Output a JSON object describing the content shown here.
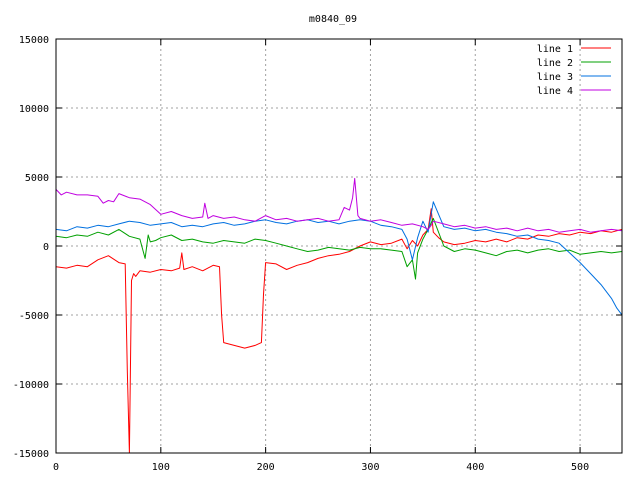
{
  "chart_data": {
    "type": "line",
    "title": "m0840_09",
    "xlabel": "",
    "ylabel": "",
    "xlim": [
      0,
      540
    ],
    "ylim": [
      -15000,
      15000
    ],
    "x_ticks": [
      0,
      100,
      200,
      300,
      400,
      500
    ],
    "y_ticks": [
      -15000,
      -10000,
      -5000,
      0,
      5000,
      10000,
      15000
    ],
    "grid": true,
    "legend_position": "top-right",
    "series": [
      {
        "name": "line 1",
        "color": "#ff0000",
        "x": [
          0,
          10,
          20,
          30,
          40,
          50,
          60,
          66,
          68,
          70,
          72,
          74,
          76,
          80,
          90,
          100,
          110,
          118,
          120,
          122,
          130,
          140,
          150,
          156,
          158,
          160,
          170,
          180,
          190,
          196,
          198,
          200,
          210,
          220,
          230,
          240,
          250,
          260,
          270,
          280,
          290,
          300,
          310,
          320,
          330,
          335,
          340,
          345,
          350,
          355,
          358,
          360,
          365,
          370,
          380,
          390,
          400,
          410,
          420,
          430,
          440,
          450,
          460,
          470,
          480,
          490,
          500,
          510,
          520,
          530,
          540
        ],
        "y": [
          -1500,
          -1600,
          -1400,
          -1500,
          -1000,
          -700,
          -1200,
          -1300,
          -9000,
          -15000,
          -2500,
          -2000,
          -2200,
          -1800,
          -1900,
          -1700,
          -1800,
          -1600,
          -500,
          -1700,
          -1500,
          -1800,
          -1400,
          -1500,
          -5000,
          -7000,
          -7200,
          -7400,
          -7200,
          -7000,
          -3500,
          -1200,
          -1300,
          -1700,
          -1400,
          -1200,
          -900,
          -700,
          -600,
          -400,
          0,
          300,
          100,
          200,
          500,
          -200,
          400,
          0,
          800,
          1200,
          2700,
          1000,
          600,
          300,
          100,
          200,
          400,
          300,
          500,
          300,
          600,
          500,
          800,
          700,
          900,
          800,
          1000,
          900,
          1100,
          1000,
          1200
        ]
      },
      {
        "name": "line 2",
        "color": "#00a000",
        "x": [
          0,
          10,
          20,
          30,
          40,
          50,
          60,
          70,
          80,
          85,
          88,
          90,
          95,
          100,
          110,
          120,
          130,
          140,
          150,
          160,
          170,
          180,
          190,
          200,
          210,
          220,
          230,
          240,
          250,
          260,
          270,
          280,
          290,
          300,
          310,
          320,
          330,
          335,
          340,
          343,
          345,
          350,
          355,
          360,
          370,
          380,
          390,
          400,
          410,
          420,
          430,
          440,
          450,
          460,
          470,
          480,
          490,
          500,
          510,
          520,
          530,
          540
        ],
        "y": [
          700,
          600,
          800,
          700,
          1000,
          800,
          1200,
          700,
          500,
          -900,
          800,
          300,
          400,
          600,
          800,
          400,
          500,
          300,
          200,
          400,
          300,
          200,
          500,
          400,
          200,
          0,
          -200,
          -400,
          -300,
          -100,
          -200,
          -300,
          -100,
          -200,
          -200,
          -300,
          -400,
          -1500,
          -1000,
          -2400,
          -500,
          500,
          1200,
          2000,
          0,
          -400,
          -200,
          -300,
          -500,
          -700,
          -400,
          -300,
          -500,
          -300,
          -200,
          -400,
          -300,
          -600,
          -500,
          -400,
          -500,
          -400
        ]
      },
      {
        "name": "line 3",
        "color": "#0070e0",
        "x": [
          0,
          10,
          20,
          30,
          40,
          50,
          60,
          70,
          80,
          90,
          100,
          110,
          120,
          130,
          140,
          150,
          160,
          170,
          180,
          190,
          200,
          210,
          220,
          230,
          240,
          250,
          260,
          270,
          280,
          290,
          300,
          310,
          320,
          330,
          335,
          340,
          345,
          350,
          355,
          360,
          370,
          380,
          390,
          400,
          410,
          420,
          430,
          440,
          450,
          460,
          470,
          480,
          490,
          500,
          510,
          520,
          530,
          535,
          540
        ],
        "y": [
          1200,
          1100,
          1400,
          1300,
          1500,
          1400,
          1600,
          1800,
          1700,
          1500,
          1600,
          1700,
          1400,
          1500,
          1400,
          1600,
          1700,
          1500,
          1600,
          1800,
          1900,
          1700,
          1600,
          1800,
          1900,
          1700,
          1800,
          1600,
          1800,
          1900,
          1800,
          1500,
          1400,
          1200,
          500,
          -1000,
          600,
          1800,
          1000,
          3200,
          1400,
          1200,
          1300,
          1100,
          1200,
          1000,
          900,
          700,
          800,
          500,
          400,
          200,
          -500,
          -1200,
          -2000,
          -2800,
          -3800,
          -4500,
          -5000
        ]
      },
      {
        "name": "line 4",
        "color": "#c000e0",
        "x": [
          0,
          5,
          10,
          20,
          30,
          40,
          45,
          50,
          55,
          60,
          70,
          80,
          90,
          100,
          110,
          120,
          130,
          140,
          142,
          145,
          150,
          160,
          170,
          180,
          190,
          200,
          210,
          220,
          230,
          240,
          250,
          260,
          270,
          275,
          280,
          283,
          285,
          288,
          290,
          300,
          310,
          320,
          330,
          340,
          350,
          355,
          358,
          360,
          370,
          380,
          390,
          400,
          410,
          420,
          430,
          440,
          450,
          460,
          470,
          480,
          490,
          500,
          510,
          520,
          530,
          540
        ],
        "y": [
          4100,
          3700,
          3900,
          3700,
          3700,
          3600,
          3100,
          3300,
          3200,
          3800,
          3500,
          3400,
          3000,
          2300,
          2500,
          2200,
          2000,
          2100,
          3100,
          2000,
          2200,
          2000,
          2100,
          1900,
          1800,
          2200,
          1900,
          2000,
          1800,
          1900,
          2000,
          1800,
          1900,
          2800,
          2600,
          3500,
          4900,
          2200,
          2000,
          1800,
          1900,
          1700,
          1500,
          1600,
          1400,
          1200,
          1500,
          1800,
          1600,
          1400,
          1500,
          1300,
          1400,
          1200,
          1300,
          1100,
          1300,
          1100,
          1200,
          1000,
          1100,
          1200,
          1000,
          1100,
          1200,
          1100
        ]
      }
    ]
  }
}
